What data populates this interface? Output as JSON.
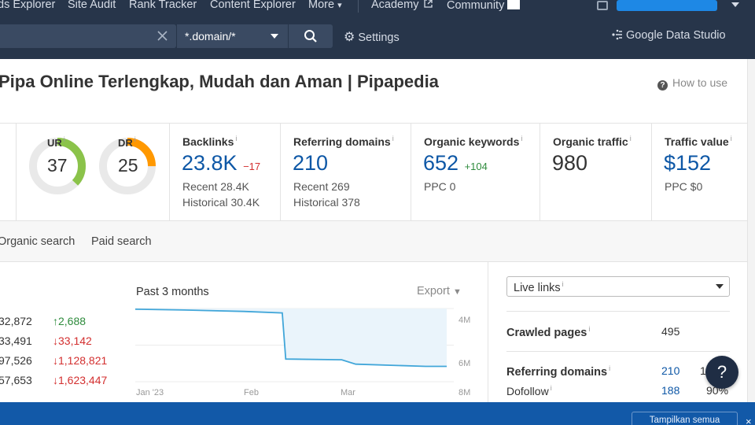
{
  "nav": {
    "items": [
      "ds Explorer",
      "Site Audit",
      "Rank Tracker",
      "Content Explorer",
      "More",
      "Academy",
      "Community"
    ],
    "more_caret": "▾",
    "settings_label": "Settings",
    "gds_label": "Google Data Studio"
  },
  "search": {
    "value": "",
    "mode": "*.domain/*"
  },
  "page": {
    "title": "Pipa Online Terlengkap, Mudah dan Aman | Pipapedia",
    "how_to_use": "How to use"
  },
  "metrics": {
    "ur": {
      "label": "UR",
      "value": "37",
      "ratio": 0.37,
      "color": "#8bc34a"
    },
    "dr": {
      "label": "DR",
      "value": "25",
      "ratio": 0.25,
      "color": "#ff9800"
    },
    "backlinks": {
      "label": "Backlinks",
      "value": "23.8K",
      "change": "−17",
      "recent": "Recent 28.4K",
      "historical": "Historical 30.4K"
    },
    "referring_domains": {
      "label": "Referring domains",
      "value": "210",
      "recent": "Recent 269",
      "historical": "Historical 378"
    },
    "organic_keywords": {
      "label": "Organic keywords",
      "value": "652",
      "change": "+104",
      "ppc": "PPC 0"
    },
    "organic_traffic": {
      "label": "Organic traffic",
      "value": "980"
    },
    "traffic_value": {
      "label": "Traffic value",
      "value": "$152",
      "ppc": "PPC $0"
    }
  },
  "tabs": [
    "Organic search",
    "Paid search"
  ],
  "left_list": [
    {
      "value": "32,872",
      "delta": "2,688",
      "dir": "up"
    },
    {
      "value": "33,491",
      "delta": "33,142",
      "dir": "down"
    },
    {
      "value": "97,526",
      "delta": "1,128,821",
      "dir": "down"
    },
    {
      "value": "57,653",
      "delta": "1,623,447",
      "dir": "down"
    }
  ],
  "chart": {
    "period_label": "Past 3 months",
    "export_label": "Export",
    "yticks": [
      "4M",
      "6M",
      "8M"
    ],
    "xticks": [
      "Jan '23",
      "Feb",
      "Mar"
    ]
  },
  "chart_data": {
    "type": "area",
    "x": [
      "2023-01-01",
      "2023-01-15",
      "2023-02-01",
      "2023-02-12",
      "2023-02-13",
      "2023-03-01",
      "2023-03-05",
      "2023-03-25",
      "2023-03-31"
    ],
    "y": [
      3.05,
      3.1,
      3.2,
      3.3,
      6.45,
      6.5,
      6.8,
      6.95,
      6.95
    ],
    "ylim": [
      3,
      8
    ],
    "y_reversed": true,
    "yticks": [
      "4M",
      "6M",
      "8M"
    ],
    "xticks": [
      "Jan '23",
      "Feb",
      "Mar"
    ],
    "line_color": "#41a6d9",
    "fill_color": "#eaf4fb"
  },
  "right_panel": {
    "select_label": "Live links",
    "crawled_pages_label": "Crawled pages",
    "crawled_pages_value": "495",
    "ref_domains_label": "Referring domains",
    "ref_domains_value": "210",
    "ref_domains_value2": "1",
    "dofollow_label": "Dofollow",
    "dofollow_value": "188",
    "dofollow_pct": "90%"
  },
  "help_label": "?",
  "bottom": {
    "show_all_label": "Tampilkan semua",
    "close": "×"
  },
  "colors": {
    "nav_bg": "#27354a",
    "accent_blue": "#0d57a6",
    "positive": "#2e8b3c",
    "negative": "#d32f2f"
  }
}
